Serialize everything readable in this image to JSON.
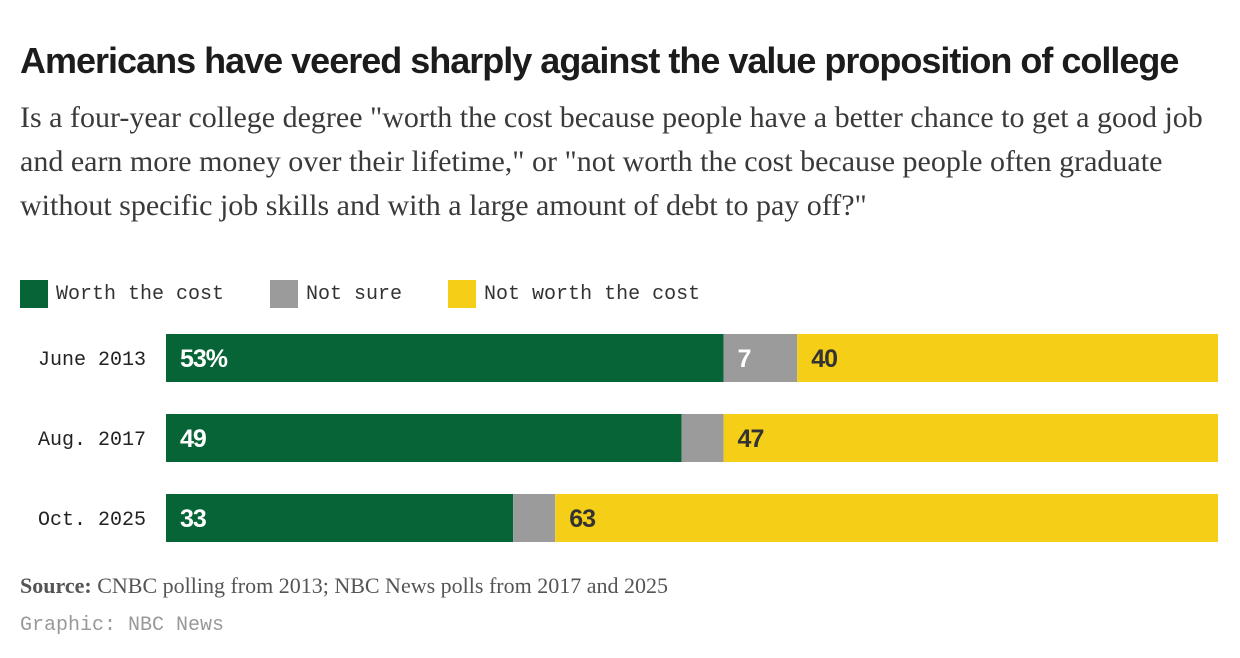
{
  "chart_data": {
    "type": "bar",
    "stacked": true,
    "orientation": "horizontal",
    "title": "Americans have veered sharply against the value proposition of college",
    "subtitle": "Is a four-year college degree \"worth the cost because people have a better chance to get a good job and earn more money over their lifetime,\" or \"not worth the cost because people often graduate without specific job skills and with a large amount of debt to pay off?\"",
    "categories": [
      "June 2013",
      "Aug. 2017",
      "Oct. 2025"
    ],
    "series": [
      {
        "name": "Worth the cost",
        "color": "#076436",
        "values": [
          53,
          49,
          33
        ],
        "labels": [
          "53%",
          "49",
          "33"
        ],
        "label_color": "#ffffff"
      },
      {
        "name": "Not sure",
        "color": "#9b9b9b",
        "values": [
          7,
          4,
          4
        ],
        "labels": [
          "7",
          "",
          ""
        ],
        "label_color": "#ffffff"
      },
      {
        "name": "Not worth the cost",
        "color": "#f5cf17",
        "values": [
          40,
          47,
          63
        ],
        "labels": [
          "40",
          "47",
          "63"
        ],
        "label_color": "#333333"
      }
    ],
    "xlim": [
      0,
      100
    ],
    "grid": false,
    "legend": "top-left"
  },
  "source_label": "Source:",
  "source_text": " CNBC polling from 2013; NBC News polls from 2017 and 2025",
  "credit": "Graphic: NBC News"
}
